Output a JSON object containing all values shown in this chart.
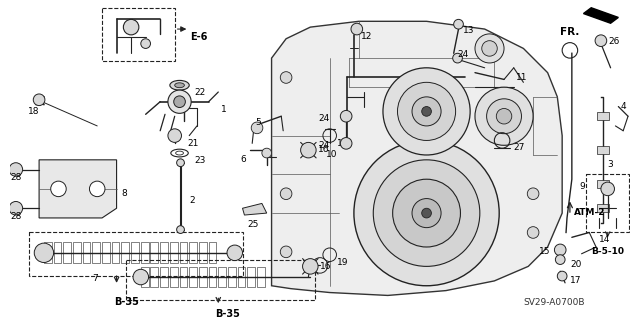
{
  "background_color": "#ffffff",
  "fig_width": 6.4,
  "fig_height": 3.19,
  "diagram_code": "SV29-A0700B",
  "fr_label": "FR.",
  "atm_label": "ATM-2",
  "e6_label": "E-6",
  "b35_label": "B-35",
  "b5_10_label": "B-5-10",
  "line_color": "#222222",
  "light_gray": "#d8d8d8",
  "mid_gray": "#aaaaaa",
  "dark_gray": "#555555"
}
